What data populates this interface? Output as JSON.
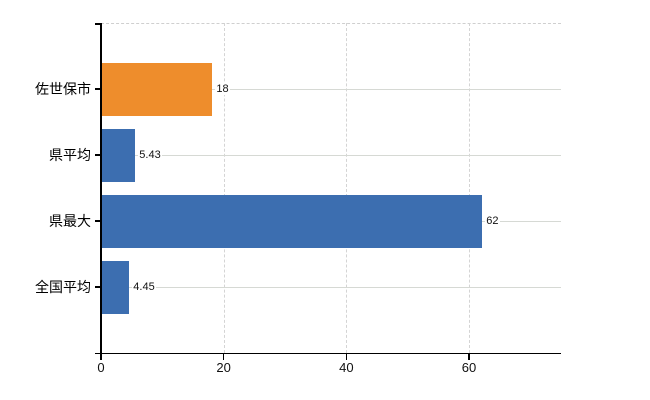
{
  "chart_data": {
    "type": "bar",
    "orientation": "horizontal",
    "title": "",
    "xlabel": "",
    "ylabel": "",
    "xlim": [
      0,
      75
    ],
    "grid": true,
    "legend": false,
    "categories": [
      "佐世保市",
      "県平均",
      "県最大",
      "全国平均"
    ],
    "bars": [
      {
        "category": "佐世保市",
        "value": 18,
        "value_label": "18",
        "color": "#ee8d2c"
      },
      {
        "category": "県平均",
        "value": 5.43,
        "value_label": "5.43",
        "color": "#3c6eb0"
      },
      {
        "category": "県最大",
        "value": 62,
        "value_label": "62",
        "color": "#3c6eb0"
      },
      {
        "category": "全国平均",
        "value": 4.45,
        "value_label": "4.45",
        "color": "#3c6eb0"
      }
    ],
    "x_ticks": [
      {
        "value": 0,
        "label": "0"
      },
      {
        "value": 20,
        "label": "20"
      },
      {
        "value": 40,
        "label": "40"
      },
      {
        "value": 60,
        "label": "60"
      }
    ],
    "grid_values": [
      20,
      40,
      60
    ]
  },
  "colors": {
    "highlight_bar": "#ee8d2c",
    "default_bar": "#3c6eb0",
    "gridline": "#d4d4d4",
    "axis": "#000000",
    "background": "#ffffff"
  }
}
